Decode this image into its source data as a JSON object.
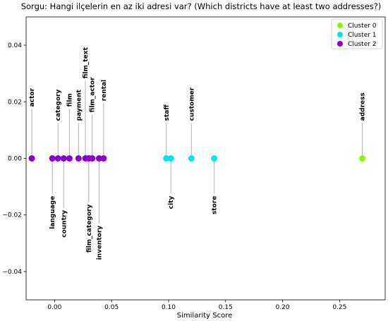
{
  "chart_data": {
    "type": "scatter",
    "title": "Sorgu: Hangi ilçelerin en az iki adresi var? (Which districts have at least two addresses?)",
    "xlabel": "Similarity Score",
    "ylabel": "",
    "xlim": [
      -0.025,
      0.29
    ],
    "ylim": [
      -0.05,
      0.05
    ],
    "xticks": [
      0.0,
      0.05,
      0.1,
      0.15,
      0.2,
      0.25
    ],
    "xtick_labels": [
      "0.00",
      "0.05",
      "0.10",
      "0.15",
      "0.20",
      "0.25"
    ],
    "yticks": [
      0.04,
      0.02,
      0.0,
      -0.02,
      -0.04
    ],
    "ytick_labels": [
      "0.04",
      "0.02",
      "0.00",
      "−0.02",
      "−0.04"
    ],
    "grid": false,
    "legend_position": "top-right",
    "clusters": [
      {
        "name": "Cluster 0",
        "color": "#7fff00"
      },
      {
        "name": "Cluster 1",
        "color": "#00e5ee"
      },
      {
        "name": "Cluster 2",
        "color": "#8b00c9"
      }
    ],
    "points": [
      {
        "label": "actor",
        "x": -0.02,
        "y": 0,
        "cluster": 2,
        "label_y": 0.0175
      },
      {
        "label": "language",
        "x": -0.002,
        "y": 0,
        "cluster": 2,
        "label_y": -0.0125
      },
      {
        "label": "category",
        "x": 0.003,
        "y": 0,
        "cluster": 2,
        "label_y": 0.0125
      },
      {
        "label": "country",
        "x": 0.008,
        "y": 0,
        "cluster": 2,
        "label_y": -0.0175
      },
      {
        "label": "film",
        "x": 0.013,
        "y": 0,
        "cluster": 2,
        "label_y": 0.0175
      },
      {
        "label": "payment",
        "x": 0.021,
        "y": 0,
        "cluster": 2,
        "label_y": 0.0125
      },
      {
        "label": "film_text",
        "x": 0.027,
        "y": 0,
        "cluster": 2,
        "label_y": 0.0275
      },
      {
        "label": "film_category",
        "x": 0.03,
        "y": 0,
        "cluster": 2,
        "label_y": -0.0155
      },
      {
        "label": "film_actor",
        "x": 0.033,
        "y": 0,
        "cluster": 2,
        "label_y": 0.0155
      },
      {
        "label": "inventory",
        "x": 0.039,
        "y": 0,
        "cluster": 2,
        "label_y": -0.023
      },
      {
        "label": "rental",
        "x": 0.043,
        "y": 0,
        "cluster": 2,
        "label_y": 0.0195
      },
      {
        "label": "staff",
        "x": 0.098,
        "y": 0,
        "cluster": 1,
        "label_y": 0.0125
      },
      {
        "label": "city",
        "x": 0.102,
        "y": 0,
        "cluster": 1,
        "label_y": -0.0125
      },
      {
        "label": "customer",
        "x": 0.12,
        "y": 0,
        "cluster": 1,
        "label_y": 0.0125
      },
      {
        "label": "store",
        "x": 0.14,
        "y": 0,
        "cluster": 1,
        "label_y": -0.0125
      },
      {
        "label": "address",
        "x": 0.27,
        "y": 0,
        "cluster": 0,
        "label_y": 0.0125
      }
    ]
  }
}
